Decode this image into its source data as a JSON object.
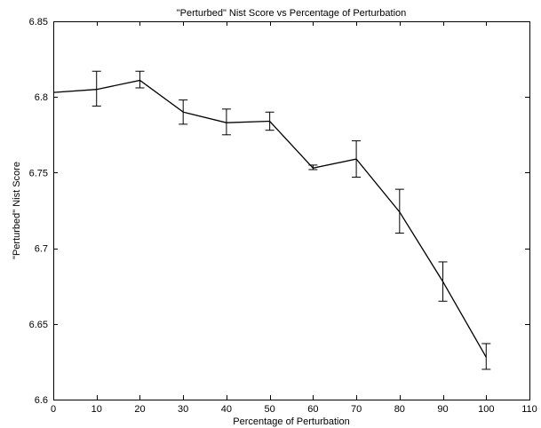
{
  "chart_data": {
    "type": "line",
    "title": "\"Perturbed\" Nist Score vs Percentage of Perturbation",
    "xlabel": "Percentage of Perturbation",
    "ylabel": "\"Perturbed\" Nist Score",
    "xlim": [
      0,
      110
    ],
    "ylim": [
      6.6,
      6.85
    ],
    "xticks": [
      "0",
      "10",
      "20",
      "30",
      "40",
      "50",
      "60",
      "70",
      "80",
      "90",
      "100",
      "110"
    ],
    "yticks": [
      "6.6",
      "6.65",
      "6.7",
      "6.75",
      "6.8",
      "6.85"
    ],
    "grid": false,
    "series": [
      {
        "x": [
          0,
          10,
          20,
          30,
          40,
          50,
          60,
          70,
          80,
          90,
          100
        ],
        "values": [
          6.803,
          6.805,
          6.811,
          6.79,
          6.783,
          6.784,
          6.753,
          6.759,
          6.724,
          6.678,
          6.628
        ],
        "error_low": [
          null,
          6.794,
          6.806,
          6.782,
          6.775,
          6.778,
          6.752,
          6.747,
          6.71,
          6.665,
          6.62
        ],
        "error_high": [
          null,
          6.817,
          6.817,
          6.798,
          6.792,
          6.79,
          6.755,
          6.771,
          6.739,
          6.691,
          6.637
        ],
        "color": "#000000"
      }
    ]
  }
}
